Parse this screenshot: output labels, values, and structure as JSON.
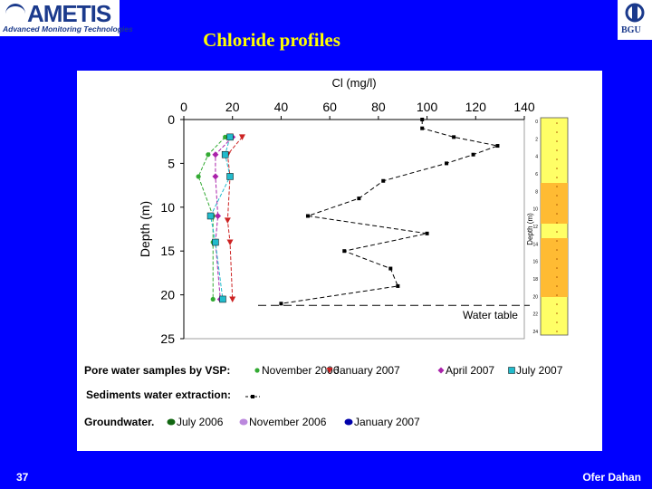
{
  "header": {
    "logo_name": "AMETIS",
    "logo_tagline": "Advanced Monitoring Technologies",
    "right_logo_text": "BGU",
    "title": "Chloride profiles"
  },
  "footer": {
    "page_number": "37",
    "author": "Ofer Dahan"
  },
  "colors": {
    "background": "#0000ff",
    "title": "#ffff00",
    "panel": "#ffffff"
  },
  "chart_data": {
    "type": "line",
    "xlabel": "Cl (mg/l)",
    "ylabel": "Depth (m)",
    "xlim": [
      0,
      140
    ],
    "ylim": [
      0,
      25
    ],
    "x_ticks": [
      0,
      20,
      40,
      60,
      80,
      100,
      120,
      140
    ],
    "y_ticks": [
      0,
      5,
      10,
      15,
      20,
      25
    ],
    "y_inverted": true,
    "water_table": {
      "label": "Water table",
      "depth": 21.2
    },
    "series": [
      {
        "name": "November 2006",
        "color": "#33aa33",
        "marker": "circle",
        "points": [
          [
            17,
            2
          ],
          [
            10,
            4
          ],
          [
            6,
            6.5
          ],
          [
            12,
            11
          ],
          [
            12,
            14
          ],
          [
            12,
            20.5
          ]
        ]
      },
      {
        "name": "January 2007",
        "color": "#cc2222",
        "marker": "triangle-down",
        "points": [
          [
            24,
            2
          ],
          [
            18,
            4
          ],
          [
            19,
            6.5
          ],
          [
            18,
            11.5
          ],
          [
            19,
            14
          ],
          [
            20,
            20.5
          ]
        ]
      },
      {
        "name": "April 2007",
        "color": "#aa22aa",
        "marker": "diamond",
        "points": [
          [
            20,
            2
          ],
          [
            13,
            4
          ],
          [
            13,
            6.5
          ],
          [
            14,
            11
          ],
          [
            13,
            14
          ],
          [
            15,
            20.5
          ]
        ]
      },
      {
        "name": "July 2007",
        "color": "#22bbcc",
        "marker": "square",
        "points": [
          [
            19,
            2
          ],
          [
            17,
            4
          ],
          [
            19,
            6.5
          ],
          [
            11,
            11
          ],
          [
            13,
            14
          ],
          [
            16,
            20.5
          ]
        ]
      },
      {
        "name": "",
        "color": "#000000",
        "marker": "small-square",
        "points": [
          [
            98,
            0
          ],
          [
            98,
            1
          ],
          [
            111,
            2
          ],
          [
            129,
            3
          ],
          [
            119,
            4
          ],
          [
            108,
            5
          ],
          [
            82,
            7
          ],
          [
            72,
            9
          ],
          [
            51,
            11
          ],
          [
            100,
            13
          ],
          [
            66,
            15
          ],
          [
            85,
            17
          ],
          [
            88,
            19
          ],
          [
            40,
            21
          ]
        ]
      }
    ]
  },
  "legend": {
    "vsp_label": "Pore water samples by VSP:",
    "vsp_items": [
      "November 2006",
      "January 2007",
      "April 2007",
      "July 2007"
    ],
    "sediments_label": "Sediments water extraction:",
    "groundwater_label": "Groundwater.",
    "groundwater_items": [
      "July 2006",
      "November 2006",
      "January 2007"
    ]
  },
  "lithology": {
    "axis_label": "Depth (m)",
    "ticks": [
      "0",
      "2",
      "4",
      "6",
      "8",
      "10",
      "12",
      "14",
      "16",
      "18",
      "20",
      "22",
      "24"
    ]
  }
}
